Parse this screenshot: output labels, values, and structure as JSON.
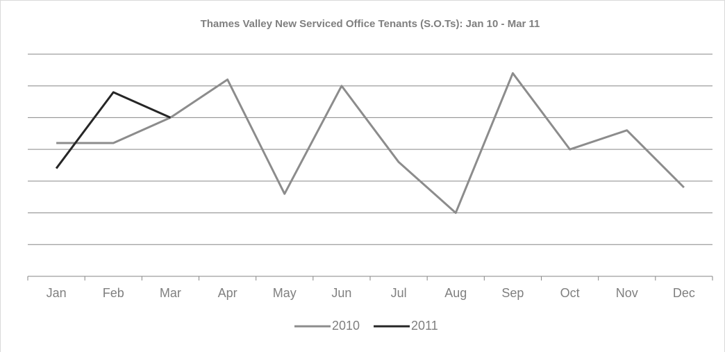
{
  "chart_data": {
    "type": "line",
    "title": "Thames Valley New Serviced Office Tenants (S.O.Ts): Jan 10 - Mar 11",
    "categories": [
      "Jan",
      "Feb",
      "Mar",
      "Apr",
      "May",
      "Jun",
      "Jul",
      "Aug",
      "Sep",
      "Oct",
      "Nov",
      "Dec"
    ],
    "series": [
      {
        "name": "2010",
        "color": "#8c8c8c",
        "values": [
          4.2,
          4.2,
          5.0,
          6.2,
          2.6,
          6.0,
          3.6,
          2.0,
          6.4,
          4.0,
          4.6,
          2.8
        ]
      },
      {
        "name": "2011",
        "color": "#262626",
        "values": [
          3.4,
          5.8,
          5.0,
          null,
          null,
          null,
          null,
          null,
          null,
          null,
          null,
          null
        ]
      }
    ],
    "ylim": [
      0,
      7
    ],
    "yticks": [
      1,
      2,
      3,
      4,
      5,
      6,
      7
    ],
    "grid": true,
    "legend": "bottom"
  }
}
